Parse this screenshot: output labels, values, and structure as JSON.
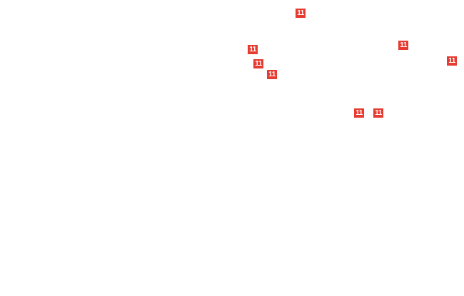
{
  "markers": [
    {
      "label": "11"
    },
    {
      "label": "11"
    },
    {
      "label": "11"
    },
    {
      "label": "11"
    },
    {
      "label": "11"
    },
    {
      "label": "11"
    },
    {
      "label": "11"
    },
    {
      "label": "11"
    }
  ]
}
